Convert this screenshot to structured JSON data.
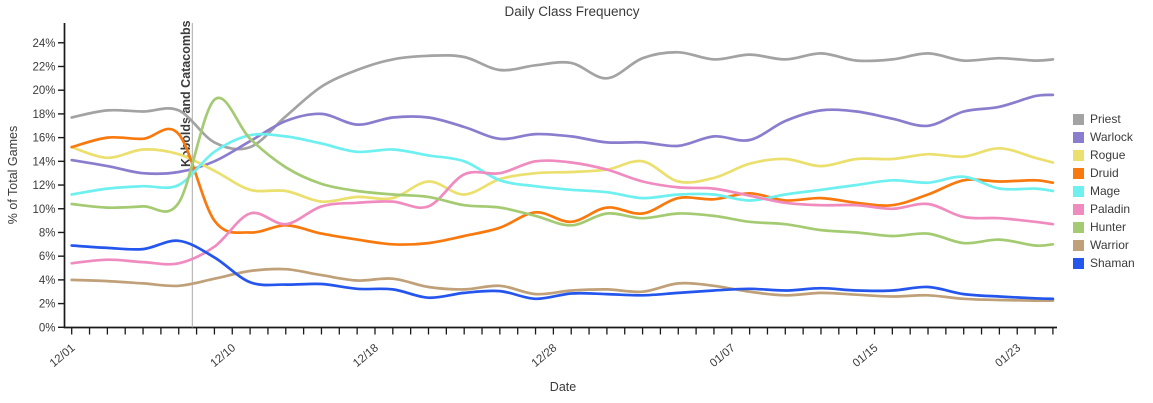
{
  "title": "Daily Class Frequency",
  "axes": {
    "x_label": "Date",
    "y_label": "% of Total Games",
    "y_tick_labels": [
      "0%",
      "2%",
      "4%",
      "6%",
      "8%",
      "10%",
      "12%",
      "14%",
      "16%",
      "18%",
      "20%",
      "22%",
      "24%"
    ],
    "x_tick_labels": [
      {
        "label": "12/01",
        "day": 0
      },
      {
        "label": "12/10",
        "day": 9
      },
      {
        "label": "12/18",
        "day": 17
      },
      {
        "label": "12/28",
        "day": 27
      },
      {
        "label": "01/07",
        "day": 37
      },
      {
        "label": "01/15",
        "day": 45
      },
      {
        "label": "01/23",
        "day": 53
      }
    ],
    "x_range_days": 55
  },
  "annotation": {
    "label": "Kobolds and Catacombs",
    "day": 6.76,
    "text_color": "#4a90c2",
    "line_color": "#aaaaaa"
  },
  "chart_data": {
    "type": "line",
    "title": "Daily Class Frequency",
    "xlabel": "Date",
    "ylabel": "% of Total Games",
    "ylim": [
      0,
      24
    ],
    "grid": false,
    "legend_position": "right",
    "x_days": [
      0,
      2,
      4,
      6,
      8,
      10,
      12,
      14,
      16,
      18,
      20,
      22,
      24,
      26,
      28,
      30,
      32,
      34,
      36,
      38,
      40,
      42,
      44,
      46,
      48,
      50,
      52,
      54,
      55
    ],
    "x_dates": [
      "12/01",
      "12/03",
      "12/05",
      "12/07",
      "12/09",
      "12/11",
      "12/13",
      "12/15",
      "12/17",
      "12/19",
      "12/21",
      "12/23",
      "12/25",
      "12/27",
      "12/29",
      "12/31",
      "01/02",
      "01/04",
      "01/06",
      "01/08",
      "01/10",
      "01/12",
      "01/14",
      "01/16",
      "01/18",
      "01/20",
      "01/22",
      "01/24",
      "01/25"
    ],
    "series": [
      {
        "name": "Priest",
        "color": "#a3a3a3",
        "values": [
          17.7,
          18.3,
          18.2,
          18.3,
          15.6,
          15.2,
          17.8,
          20.3,
          21.7,
          22.6,
          22.9,
          22.8,
          21.7,
          22.1,
          22.3,
          21.0,
          22.7,
          23.2,
          22.6,
          23.0,
          22.6,
          23.1,
          22.5,
          22.6,
          23.1,
          22.5,
          22.7,
          22.5,
          22.6
        ]
      },
      {
        "name": "Warlock",
        "color": "#8b7dce",
        "values": [
          14.1,
          13.6,
          13.0,
          13.1,
          14.0,
          15.7,
          17.4,
          18.0,
          17.1,
          17.7,
          17.7,
          16.9,
          15.9,
          16.3,
          16.1,
          15.6,
          15.6,
          15.3,
          16.1,
          15.8,
          17.4,
          18.3,
          18.2,
          17.6,
          17.0,
          18.2,
          18.6,
          19.5,
          19.6
        ]
      },
      {
        "name": "Rogue",
        "color": "#ebdf6e",
        "values": [
          15.2,
          14.3,
          15.0,
          14.6,
          13.2,
          11.6,
          11.5,
          10.6,
          11.0,
          10.9,
          12.3,
          11.2,
          12.5,
          13.0,
          13.1,
          13.3,
          14.0,
          12.3,
          12.6,
          13.8,
          14.2,
          13.6,
          14.2,
          14.2,
          14.6,
          14.4,
          15.1,
          14.3,
          13.9
        ]
      },
      {
        "name": "Druid",
        "color": "#f8790e",
        "values": [
          15.2,
          16.0,
          15.9,
          16.3,
          9.0,
          8.0,
          8.6,
          7.9,
          7.4,
          7.0,
          7.1,
          7.7,
          8.4,
          9.7,
          8.9,
          10.1,
          9.6,
          10.9,
          10.8,
          11.3,
          10.7,
          10.9,
          10.5,
          10.3,
          11.2,
          12.4,
          12.3,
          12.4,
          12.2
        ]
      },
      {
        "name": "Mage",
        "color": "#6ef0f0",
        "values": [
          11.2,
          11.7,
          11.9,
          12.0,
          14.8,
          16.2,
          16.1,
          15.5,
          14.8,
          15.0,
          14.5,
          14.0,
          12.4,
          11.9,
          11.6,
          11.4,
          10.9,
          11.2,
          11.2,
          10.7,
          11.2,
          11.6,
          12.0,
          12.4,
          12.2,
          12.7,
          11.7,
          11.7,
          11.5
        ]
      },
      {
        "name": "Paladin",
        "color": "#f08bc0",
        "values": [
          5.4,
          5.7,
          5.5,
          5.4,
          6.8,
          9.6,
          8.7,
          10.2,
          10.5,
          10.6,
          10.2,
          12.9,
          13.0,
          14.0,
          13.9,
          13.3,
          12.3,
          11.8,
          11.7,
          11.1,
          10.5,
          10.3,
          10.3,
          10.0,
          10.4,
          9.3,
          9.2,
          8.9,
          8.7
        ]
      },
      {
        "name": "Hunter",
        "color": "#a4cb72",
        "values": [
          10.4,
          10.1,
          10.2,
          10.5,
          19.2,
          15.9,
          13.5,
          12.1,
          11.5,
          11.2,
          11.0,
          10.3,
          10.1,
          9.4,
          8.6,
          9.6,
          9.2,
          9.6,
          9.4,
          8.9,
          8.7,
          8.2,
          8.0,
          7.7,
          7.9,
          7.1,
          7.4,
          6.9,
          7.0
        ]
      },
      {
        "name": "Warrior",
        "color": "#bfa078",
        "values": [
          4.0,
          3.9,
          3.7,
          3.5,
          4.1,
          4.75,
          4.9,
          4.4,
          3.95,
          4.1,
          3.4,
          3.2,
          3.5,
          2.8,
          3.1,
          3.2,
          3.0,
          3.7,
          3.5,
          3.0,
          2.7,
          2.9,
          2.75,
          2.6,
          2.7,
          2.4,
          2.3,
          2.25,
          2.25
        ]
      },
      {
        "name": "Shaman",
        "color": "#2456ee",
        "values": [
          6.9,
          6.7,
          6.6,
          7.3,
          5.9,
          3.8,
          3.6,
          3.65,
          3.25,
          3.2,
          2.5,
          2.9,
          3.05,
          2.4,
          2.85,
          2.8,
          2.7,
          2.9,
          3.1,
          3.25,
          3.1,
          3.3,
          3.1,
          3.1,
          3.4,
          2.8,
          2.6,
          2.45,
          2.4
        ]
      }
    ]
  }
}
